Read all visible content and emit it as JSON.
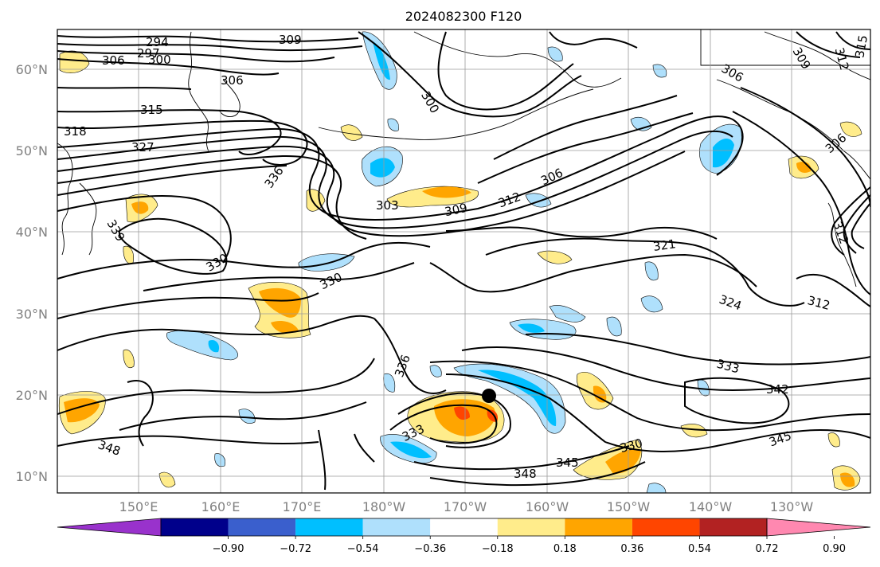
{
  "title": "2024082300 F120",
  "lat_ticks": [
    "60°N",
    "50°N",
    "40°N",
    "30°N",
    "20°N",
    "10°N"
  ],
  "lon_ticks": [
    "150°E",
    "160°E",
    "170°E",
    "180°W",
    "170°W",
    "160°W",
    "150°W",
    "140°W",
    "130°W"
  ],
  "colorbar": {
    "labels": [
      "−0.90",
      "−0.72",
      "−0.54",
      "−0.36",
      "−0.18",
      "0.18",
      "0.36",
      "0.54",
      "0.72",
      "0.90"
    ],
    "colors": [
      "#9932cc",
      "#00008b",
      "#3a5fcd",
      "#00bfff",
      "#afe0fc",
      "#ffffff",
      "#ffec8b",
      "#ffa500",
      "#ff4500",
      "#b22222",
      "#ff88b0"
    ]
  },
  "contour_labels": [
    "294",
    "297",
    "300",
    "306",
    "309",
    "306",
    "315",
    "318",
    "327",
    "336",
    "339",
    "330",
    "330",
    "303",
    "309",
    "312",
    "306",
    "300",
    "321",
    "324",
    "312",
    "333",
    "342",
    "345",
    "330",
    "345",
    "348",
    "348",
    "336",
    "333",
    "309",
    "312",
    "315",
    "306",
    "306",
    "312"
  ],
  "storm_marker": "tropical-cyclone-position"
}
